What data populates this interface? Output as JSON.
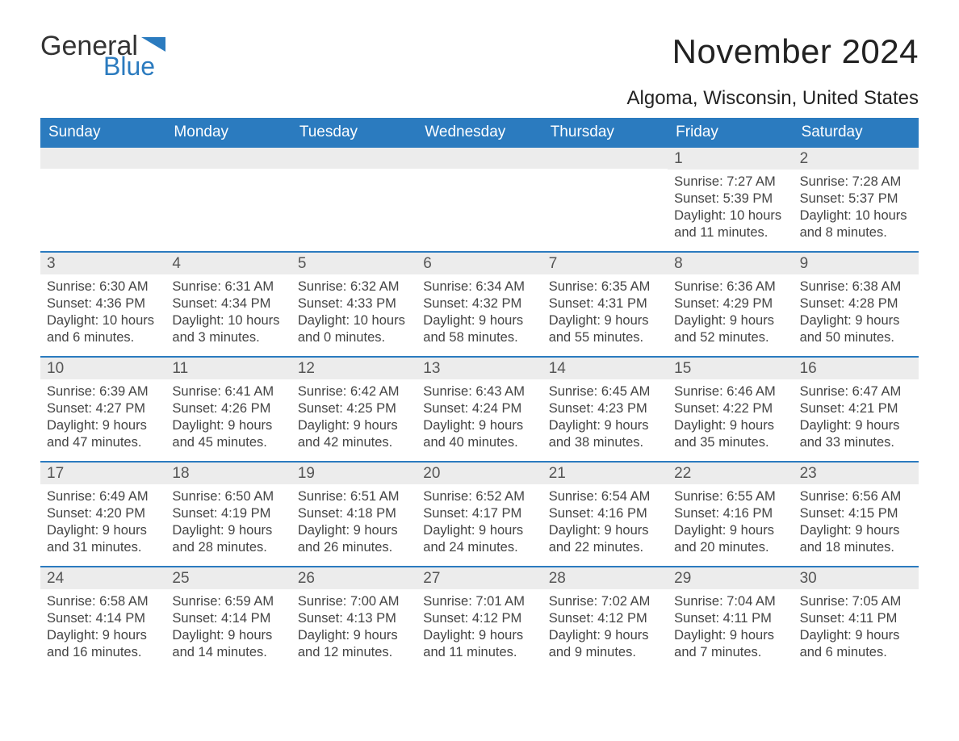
{
  "brand": {
    "text1": "General",
    "text2": "Blue",
    "accent_color": "#2b7bbf"
  },
  "title": "November 2024",
  "location": "Algoma, Wisconsin, United States",
  "layout": {
    "columns": 7,
    "weeks": 5,
    "start_day_index": 5,
    "colors": {
      "header_bg": "#2b7bbf",
      "header_text": "#ffffff",
      "week_border": "#2b7bbf",
      "daynum_bg": "#ececec",
      "body_text": "#444444",
      "background": "#ffffff"
    },
    "fonts": {
      "title_size_pt": 32,
      "location_size_pt": 18,
      "header_size_pt": 14,
      "daynum_size_pt": 14,
      "body_size_pt": 12
    }
  },
  "weekdays": [
    "Sunday",
    "Monday",
    "Tuesday",
    "Wednesday",
    "Thursday",
    "Friday",
    "Saturday"
  ],
  "days": [
    {
      "n": 1,
      "sunrise": "7:27 AM",
      "sunset": "5:39 PM",
      "daylight": "10 hours and 11 minutes."
    },
    {
      "n": 2,
      "sunrise": "7:28 AM",
      "sunset": "5:37 PM",
      "daylight": "10 hours and 8 minutes."
    },
    {
      "n": 3,
      "sunrise": "6:30 AM",
      "sunset": "4:36 PM",
      "daylight": "10 hours and 6 minutes."
    },
    {
      "n": 4,
      "sunrise": "6:31 AM",
      "sunset": "4:34 PM",
      "daylight": "10 hours and 3 minutes."
    },
    {
      "n": 5,
      "sunrise": "6:32 AM",
      "sunset": "4:33 PM",
      "daylight": "10 hours and 0 minutes."
    },
    {
      "n": 6,
      "sunrise": "6:34 AM",
      "sunset": "4:32 PM",
      "daylight": "9 hours and 58 minutes."
    },
    {
      "n": 7,
      "sunrise": "6:35 AM",
      "sunset": "4:31 PM",
      "daylight": "9 hours and 55 minutes."
    },
    {
      "n": 8,
      "sunrise": "6:36 AM",
      "sunset": "4:29 PM",
      "daylight": "9 hours and 52 minutes."
    },
    {
      "n": 9,
      "sunrise": "6:38 AM",
      "sunset": "4:28 PM",
      "daylight": "9 hours and 50 minutes."
    },
    {
      "n": 10,
      "sunrise": "6:39 AM",
      "sunset": "4:27 PM",
      "daylight": "9 hours and 47 minutes."
    },
    {
      "n": 11,
      "sunrise": "6:41 AM",
      "sunset": "4:26 PM",
      "daylight": "9 hours and 45 minutes."
    },
    {
      "n": 12,
      "sunrise": "6:42 AM",
      "sunset": "4:25 PM",
      "daylight": "9 hours and 42 minutes."
    },
    {
      "n": 13,
      "sunrise": "6:43 AM",
      "sunset": "4:24 PM",
      "daylight": "9 hours and 40 minutes."
    },
    {
      "n": 14,
      "sunrise": "6:45 AM",
      "sunset": "4:23 PM",
      "daylight": "9 hours and 38 minutes."
    },
    {
      "n": 15,
      "sunrise": "6:46 AM",
      "sunset": "4:22 PM",
      "daylight": "9 hours and 35 minutes."
    },
    {
      "n": 16,
      "sunrise": "6:47 AM",
      "sunset": "4:21 PM",
      "daylight": "9 hours and 33 minutes."
    },
    {
      "n": 17,
      "sunrise": "6:49 AM",
      "sunset": "4:20 PM",
      "daylight": "9 hours and 31 minutes."
    },
    {
      "n": 18,
      "sunrise": "6:50 AM",
      "sunset": "4:19 PM",
      "daylight": "9 hours and 28 minutes."
    },
    {
      "n": 19,
      "sunrise": "6:51 AM",
      "sunset": "4:18 PM",
      "daylight": "9 hours and 26 minutes."
    },
    {
      "n": 20,
      "sunrise": "6:52 AM",
      "sunset": "4:17 PM",
      "daylight": "9 hours and 24 minutes."
    },
    {
      "n": 21,
      "sunrise": "6:54 AM",
      "sunset": "4:16 PM",
      "daylight": "9 hours and 22 minutes."
    },
    {
      "n": 22,
      "sunrise": "6:55 AM",
      "sunset": "4:16 PM",
      "daylight": "9 hours and 20 minutes."
    },
    {
      "n": 23,
      "sunrise": "6:56 AM",
      "sunset": "4:15 PM",
      "daylight": "9 hours and 18 minutes."
    },
    {
      "n": 24,
      "sunrise": "6:58 AM",
      "sunset": "4:14 PM",
      "daylight": "9 hours and 16 minutes."
    },
    {
      "n": 25,
      "sunrise": "6:59 AM",
      "sunset": "4:14 PM",
      "daylight": "9 hours and 14 minutes."
    },
    {
      "n": 26,
      "sunrise": "7:00 AM",
      "sunset": "4:13 PM",
      "daylight": "9 hours and 12 minutes."
    },
    {
      "n": 27,
      "sunrise": "7:01 AM",
      "sunset": "4:12 PM",
      "daylight": "9 hours and 11 minutes."
    },
    {
      "n": 28,
      "sunrise": "7:02 AM",
      "sunset": "4:12 PM",
      "daylight": "9 hours and 9 minutes."
    },
    {
      "n": 29,
      "sunrise": "7:04 AM",
      "sunset": "4:11 PM",
      "daylight": "9 hours and 7 minutes."
    },
    {
      "n": 30,
      "sunrise": "7:05 AM",
      "sunset": "4:11 PM",
      "daylight": "9 hours and 6 minutes."
    }
  ],
  "labels": {
    "sunrise": "Sunrise:",
    "sunset": "Sunset:",
    "daylight": "Daylight:"
  }
}
